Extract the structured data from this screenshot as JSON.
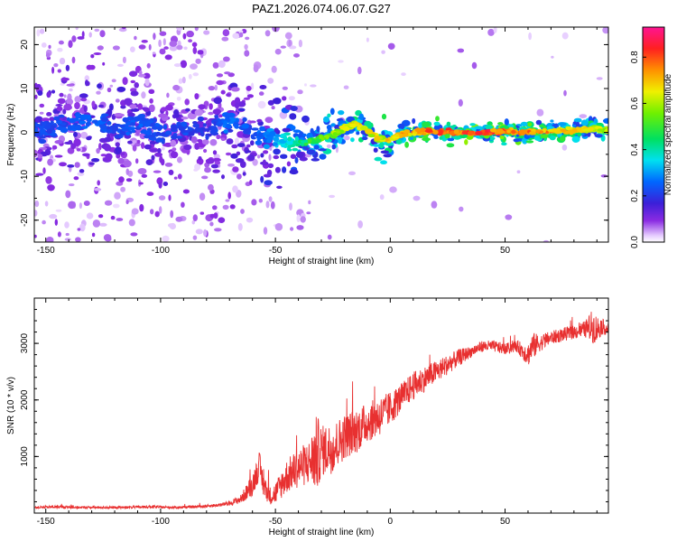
{
  "figure_title": "PAZ1.2026.074.06.07.G27",
  "colors": {
    "snr_line": "#e83030",
    "frame": "#000000"
  },
  "chart_data": [
    {
      "type": "heatmap",
      "title": "PAZ1.2026.074.06.07.G27",
      "xlabel": "Height of straight line (km)",
      "ylabel": "Frequency (Hz)",
      "xlim": [
        -155,
        95
      ],
      "ylim": [
        -25,
        24
      ],
      "xticks": [
        -150,
        -100,
        -50,
        0,
        50
      ],
      "xtick_labels": [
        "-150",
        "-100",
        "-50",
        "0",
        "50"
      ],
      "yticks": [
        -20,
        -10,
        0,
        10,
        20
      ],
      "ytick_labels": [
        "-20",
        "-10",
        "0",
        "10",
        "20"
      ],
      "colorbar": {
        "label": "Normalized spectral amplitude",
        "range": [
          0,
          0.93
        ],
        "ticks": [
          0,
          0.2,
          0.4,
          0.6,
          0.8
        ],
        "tick_labels": [
          "0.0",
          "0.2",
          "0.4",
          "0.6",
          "0.8"
        ],
        "colormap": "rainbow (white→violet→blue→cyan→green→yellow→red→magenta)"
      },
      "ridge": {
        "description": "main frequency ridge, frequency (Hz) vs height (km)",
        "x": [
          -153,
          -140,
          -130,
          -120,
          -110,
          -100,
          -90,
          -80,
          -70,
          -60,
          -50,
          -45,
          -40,
          -35,
          -30,
          -25,
          -20,
          -15,
          -12,
          -8,
          -5,
          0,
          5,
          10,
          15,
          20,
          30,
          40,
          50,
          60,
          70,
          80,
          90,
          95
        ],
        "y": [
          0.5,
          1.5,
          2.5,
          1.0,
          2.0,
          -0.5,
          1.0,
          0.5,
          3.0,
          0.5,
          -1.5,
          -2.0,
          -2.5,
          -2.0,
          -1.5,
          -0.5,
          1.0,
          2.0,
          1.0,
          -0.5,
          -1.5,
          -1.5,
          -0.5,
          0.0,
          0.3,
          0.2,
          0.0,
          0.0,
          0.2,
          0.0,
          0.3,
          0.5,
          0.8,
          0.5
        ],
        "amplitude": [
          0.25,
          0.25,
          0.28,
          0.25,
          0.28,
          0.25,
          0.25,
          0.22,
          0.3,
          0.25,
          0.35,
          0.4,
          0.45,
          0.55,
          0.6,
          0.65,
          0.7,
          0.75,
          0.7,
          0.72,
          0.72,
          0.75,
          0.78,
          0.8,
          0.85,
          0.88,
          0.9,
          0.9,
          0.88,
          0.85,
          0.8,
          0.75,
          0.7,
          0.65
        ]
      }
    },
    {
      "type": "line",
      "xlabel": "Height of straight line (km)",
      "ylabel": "SNR (10 * v/v)",
      "xlim": [
        -155,
        95
      ],
      "ylim": [
        0,
        3800
      ],
      "xticks": [
        -150,
        -100,
        -50,
        0,
        50
      ],
      "xtick_labels": [
        "-150",
        "-100",
        "-50",
        "0",
        "50"
      ],
      "yticks": [
        1000,
        2000,
        3000
      ],
      "ytick_labels": [
        "1000",
        "2000",
        "3000"
      ],
      "series": [
        {
          "name": "SNR",
          "x": [
            -155,
            -145,
            -135,
            -125,
            -115,
            -105,
            -95,
            -85,
            -75,
            -70,
            -65,
            -60,
            -57,
            -55,
            -52,
            -50,
            -45,
            -40,
            -35,
            -32,
            -30,
            -25,
            -20,
            -15,
            -10,
            -5,
            0,
            5,
            10,
            20,
            30,
            35,
            40,
            45,
            50,
            55,
            60,
            62,
            65,
            70,
            75,
            80,
            85,
            88,
            90,
            92,
            95
          ],
          "values": [
            100,
            110,
            100,
            100,
            100,
            110,
            100,
            110,
            140,
            170,
            250,
            500,
            850,
            450,
            300,
            350,
            650,
            800,
            900,
            1050,
            1100,
            1150,
            1350,
            1450,
            1600,
            1700,
            1850,
            2050,
            2250,
            2500,
            2750,
            2850,
            2950,
            2950,
            2900,
            2950,
            2800,
            2950,
            3000,
            3100,
            3150,
            3200,
            3250,
            3300,
            3250,
            3300,
            3250
          ],
          "noise": [
            20,
            25,
            20,
            20,
            20,
            25,
            20,
            25,
            30,
            40,
            80,
            200,
            250,
            200,
            150,
            200,
            300,
            350,
            400,
            700,
            450,
            450,
            400,
            400,
            350,
            350,
            300,
            250,
            250,
            200,
            150,
            100,
            100,
            100,
            100,
            100,
            200,
            250,
            150,
            120,
            120,
            120,
            150,
            300,
            250,
            150,
            100
          ]
        }
      ]
    }
  ]
}
